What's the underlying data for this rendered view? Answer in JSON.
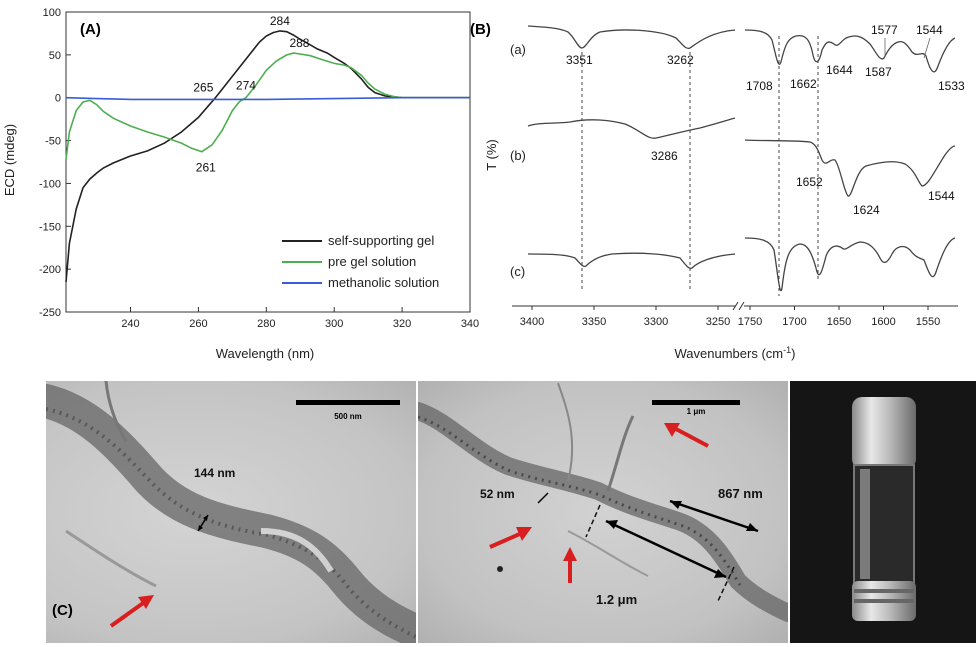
{
  "figure": {
    "panel_a_label": "(A)",
    "panel_b_label": "(B)",
    "panel_c_label": "(C)"
  },
  "chart_data": [
    {
      "type": "line",
      "panel": "(A)",
      "xlabel": "Wavelength (nm)",
      "ylabel": "ECD (mdeg)",
      "xlim": [
        221,
        340
      ],
      "ylim": [
        -250,
        100
      ],
      "x_ticks": [
        240,
        260,
        280,
        300,
        320,
        340
      ],
      "y_ticks": [
        100,
        50,
        0,
        -50,
        -100,
        -150,
        -200,
        -250
      ],
      "grid": false,
      "legend_placement": "bottom-right",
      "series": [
        {
          "name": "self-supporting gel",
          "color": "#222222",
          "x": [
            221,
            222,
            224,
            226,
            228,
            230,
            232,
            235,
            240,
            245,
            250,
            255,
            260,
            265,
            270,
            275,
            278,
            280,
            282,
            284,
            286,
            288,
            290,
            292,
            295,
            298,
            300,
            303,
            305,
            308,
            310,
            312,
            315,
            318,
            320,
            325,
            330,
            335,
            340
          ],
          "y": [
            -215,
            -170,
            -130,
            -105,
            -95,
            -88,
            -82,
            -76,
            -68,
            -62,
            -53,
            -40,
            -23,
            0,
            25,
            50,
            65,
            72,
            76,
            78,
            77,
            73,
            68,
            64,
            57,
            52,
            47,
            40,
            34,
            22,
            12,
            6,
            2,
            1,
            0,
            0,
            0,
            0,
            0
          ]
        },
        {
          "name": "pre gel solution",
          "color": "#4caf50",
          "x": [
            221,
            222,
            224,
            226,
            228,
            230,
            232,
            235,
            240,
            245,
            250,
            255,
            258,
            261,
            264,
            267,
            270,
            272,
            274,
            277,
            280,
            283,
            286,
            288,
            290,
            293,
            296,
            300,
            303,
            305,
            308,
            310,
            312,
            315,
            318,
            320,
            325,
            330,
            335,
            340
          ],
          "y": [
            -72,
            -40,
            -15,
            -5,
            -3,
            -8,
            -16,
            -24,
            -33,
            -40,
            -46,
            -53,
            -59,
            -63,
            -55,
            -38,
            -15,
            -5,
            0,
            15,
            32,
            43,
            50,
            52,
            51,
            49,
            45,
            40,
            38,
            35,
            26,
            17,
            10,
            4,
            1,
            0,
            0,
            0,
            0,
            0
          ]
        },
        {
          "name": "methanolic solution",
          "color": "#3b5bdb",
          "x": [
            221,
            230,
            240,
            260,
            280,
            300,
            320,
            340
          ],
          "y": [
            0,
            -1,
            -2,
            -2,
            -2,
            -1,
            0,
            0
          ]
        }
      ],
      "annotations": [
        {
          "text": "284",
          "x": 284,
          "y": 78
        },
        {
          "text": "288",
          "x": 288,
          "y": 52
        },
        {
          "text": "265",
          "x": 265,
          "y": 0
        },
        {
          "text": "274",
          "x": 274,
          "y": 0
        },
        {
          "text": "261",
          "x": 261,
          "y": -63
        }
      ]
    },
    {
      "type": "line",
      "panel": "(B)",
      "xlabel": "Wavenumbers (cm-1)",
      "ylabel": "T (%)",
      "x_ticks_left": [
        3400,
        3350,
        3300,
        3250
      ],
      "x_ticks_right": [
        1750,
        1700,
        1650,
        1600,
        1550
      ],
      "broken_axis": true,
      "series": [
        {
          "name": "(a)",
          "peak_labels": [
            "3351",
            "3262",
            "1708",
            "1662",
            "1644",
            "1587",
            "1577",
            "1544",
            "1533"
          ]
        },
        {
          "name": "(b)",
          "peak_labels": [
            "3286",
            "1652",
            "1624",
            "1544"
          ]
        },
        {
          "name": "(c)",
          "peak_labels": []
        }
      ]
    }
  ],
  "micrographs": {
    "left": {
      "scale_bar": "500 nm",
      "measurement": "144 nm"
    },
    "middle": {
      "scale_bar": "1 μm",
      "measurement_1": "52 nm",
      "measurement_2": "867 nm",
      "measurement_3": "1.2 μm"
    }
  },
  "colors": {
    "arrow": "#d81e1e",
    "tem_background": "#c8c8c8",
    "photo_background": "#151515"
  }
}
